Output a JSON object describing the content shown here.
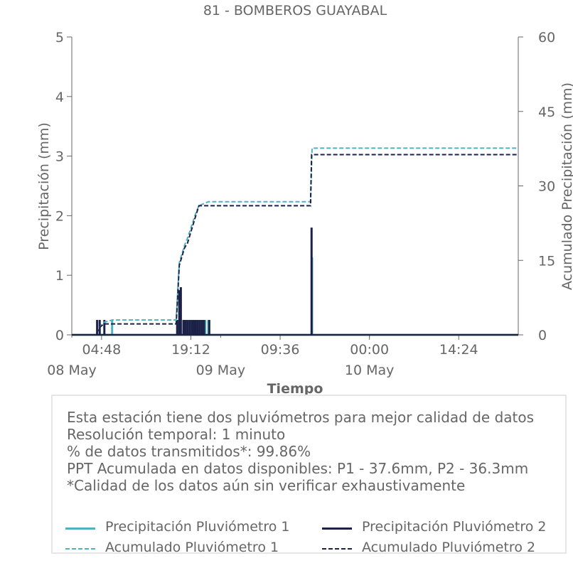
{
  "chart_data": {
    "type": "line",
    "title": "81 - BOMBEROS GUAYABAL",
    "xlabel": "Tiempo",
    "ylabel_left": "Precipitación (mm)",
    "ylabel_right": "Acumulado Precipitación (mm)",
    "x_range": [
      "2024-05-08T00:00",
      "2024-05-11T00:00"
    ],
    "ylim_left": [
      0,
      5
    ],
    "ylim_right": [
      0,
      60
    ],
    "yticks_left": [
      "0",
      "1",
      "2",
      "3",
      "4",
      "5"
    ],
    "yticks_right": [
      "0",
      "15",
      "30",
      "45",
      "60"
    ],
    "x_ticks": [
      {
        "t": "2024-05-08T04:48",
        "label": "04:48"
      },
      {
        "t": "2024-05-08T19:12",
        "label": "19:12"
      },
      {
        "t": "2024-05-09T09:36",
        "label": "09:36"
      },
      {
        "t": "2024-05-10T00:00",
        "label": "00:00"
      },
      {
        "t": "2024-05-10T14:24",
        "label": "14:24"
      }
    ],
    "x_date_labels": [
      {
        "t": "2024-05-08T00:00",
        "label": "08 May"
      },
      {
        "t": "2024-05-09T00:00",
        "label": "09 May"
      },
      {
        "t": "2024-05-10T00:00",
        "label": "10 May"
      }
    ],
    "grid": false,
    "series": [
      {
        "name": "Precipitación Pluviómetro 1",
        "axis": "left",
        "style": "solid",
        "color": "#4fb3bf",
        "spikes": [
          {
            "t": "2024-05-08T06:30",
            "v": 0.25
          },
          {
            "t": "2024-05-08T17:00",
            "v": 0.25
          },
          {
            "t": "2024-05-08T17:30",
            "v": 0.5
          },
          {
            "t": "2024-05-08T18:00",
            "v": 0.25
          },
          {
            "t": "2024-05-08T18:30",
            "v": 0.25
          },
          {
            "t": "2024-05-08T19:00",
            "v": 0.25
          },
          {
            "t": "2024-05-08T19:30",
            "v": 0.25
          },
          {
            "t": "2024-05-08T20:00",
            "v": 0.25
          },
          {
            "t": "2024-05-08T20:30",
            "v": 0.25
          },
          {
            "t": "2024-05-08T21:00",
            "v": 0.25
          },
          {
            "t": "2024-05-08T21:30",
            "v": 0.25
          },
          {
            "t": "2024-05-08T22:00",
            "v": 0.25
          },
          {
            "t": "2024-05-09T14:45",
            "v": 1.3
          }
        ]
      },
      {
        "name": "Precipitación Pluviómetro 2",
        "axis": "left",
        "style": "solid",
        "color": "#1c2147",
        "spikes": [
          {
            "t": "2024-05-08T04:05",
            "v": 0.25
          },
          {
            "t": "2024-05-08T04:30",
            "v": 0.25
          },
          {
            "t": "2024-05-08T05:15",
            "v": 0.25
          },
          {
            "t": "2024-05-08T17:00",
            "v": 0.25
          },
          {
            "t": "2024-05-08T17:20",
            "v": 0.75
          },
          {
            "t": "2024-05-08T17:35",
            "v": 0.8
          },
          {
            "t": "2024-05-08T18:00",
            "v": 0.25
          },
          {
            "t": "2024-05-08T18:20",
            "v": 0.25
          },
          {
            "t": "2024-05-08T18:40",
            "v": 0.25
          },
          {
            "t": "2024-05-08T19:00",
            "v": 0.25
          },
          {
            "t": "2024-05-08T19:20",
            "v": 0.25
          },
          {
            "t": "2024-05-08T19:40",
            "v": 0.25
          },
          {
            "t": "2024-05-08T20:00",
            "v": 0.25
          },
          {
            "t": "2024-05-08T20:20",
            "v": 0.25
          },
          {
            "t": "2024-05-08T20:40",
            "v": 0.25
          },
          {
            "t": "2024-05-08T21:00",
            "v": 0.25
          },
          {
            "t": "2024-05-08T21:20",
            "v": 0.25
          },
          {
            "t": "2024-05-08T22:10",
            "v": 0.25
          },
          {
            "t": "2024-05-09T14:40",
            "v": 1.8
          }
        ]
      },
      {
        "name": "Acumulado Pluviómetro 1",
        "axis": "right",
        "style": "dashed",
        "color": "#4fb3bf",
        "points": [
          {
            "t": "2024-05-08T00:00",
            "v": 0
          },
          {
            "t": "2024-05-08T03:50",
            "v": 0
          },
          {
            "t": "2024-05-08T04:30",
            "v": 1.5
          },
          {
            "t": "2024-05-08T05:10",
            "v": 2.5
          },
          {
            "t": "2024-05-08T06:30",
            "v": 3.0
          },
          {
            "t": "2024-05-08T16:50",
            "v": 3.0
          },
          {
            "t": "2024-05-08T17:20",
            "v": 14.5
          },
          {
            "t": "2024-05-08T18:10",
            "v": 18.0
          },
          {
            "t": "2024-05-08T18:40",
            "v": 19.5
          },
          {
            "t": "2024-05-08T20:00",
            "v": 24.5
          },
          {
            "t": "2024-05-08T20:30",
            "v": 26.0
          },
          {
            "t": "2024-05-08T22:00",
            "v": 26.8
          },
          {
            "t": "2024-05-09T14:30",
            "v": 26.8
          },
          {
            "t": "2024-05-09T14:45",
            "v": 37.6
          },
          {
            "t": "2024-05-11T00:00",
            "v": 37.6
          }
        ]
      },
      {
        "name": "Acumulado Pluviómetro 2",
        "axis": "right",
        "style": "dashed",
        "color": "#1c2147",
        "points": [
          {
            "t": "2024-05-08T00:00",
            "v": 0
          },
          {
            "t": "2024-05-08T03:50",
            "v": 0
          },
          {
            "t": "2024-05-08T04:30",
            "v": 1.5
          },
          {
            "t": "2024-05-08T05:10",
            "v": 2.2
          },
          {
            "t": "2024-05-08T16:50",
            "v": 2.2
          },
          {
            "t": "2024-05-08T17:20",
            "v": 14.0
          },
          {
            "t": "2024-05-08T18:10",
            "v": 17.5
          },
          {
            "t": "2024-05-08T18:40",
            "v": 18.5
          },
          {
            "t": "2024-05-08T20:00",
            "v": 24.0
          },
          {
            "t": "2024-05-08T20:30",
            "v": 26.0
          },
          {
            "t": "2024-05-09T14:30",
            "v": 26.0
          },
          {
            "t": "2024-05-09T14:40",
            "v": 36.3
          },
          {
            "t": "2024-05-11T00:00",
            "v": 36.3
          }
        ]
      }
    ]
  },
  "info": {
    "lines": [
      "Esta estación tiene dos pluviómetros para mejor calidad de datos",
      "Resolución temporal: 1 minuto",
      "% de datos transmitidos*: 99.86%",
      "PPT Acumulada en datos disponibles: P1 - 37.6mm, P2 - 36.3mm",
      "*Calidad de los datos aún sin verificar exhaustivamente"
    ]
  },
  "legend": {
    "items": [
      {
        "label": "Precipitación Pluviómetro 1",
        "color": "#4fb3bf",
        "style": "solid"
      },
      {
        "label": "Precipitación Pluviómetro 2",
        "color": "#1c2147",
        "style": "solid"
      },
      {
        "label": "Acumulado Pluviómetro 1",
        "color": "#4fb3bf",
        "style": "dashed"
      },
      {
        "label": "Acumulado Pluviómetro 2",
        "color": "#1c2147",
        "style": "dashed"
      }
    ]
  }
}
